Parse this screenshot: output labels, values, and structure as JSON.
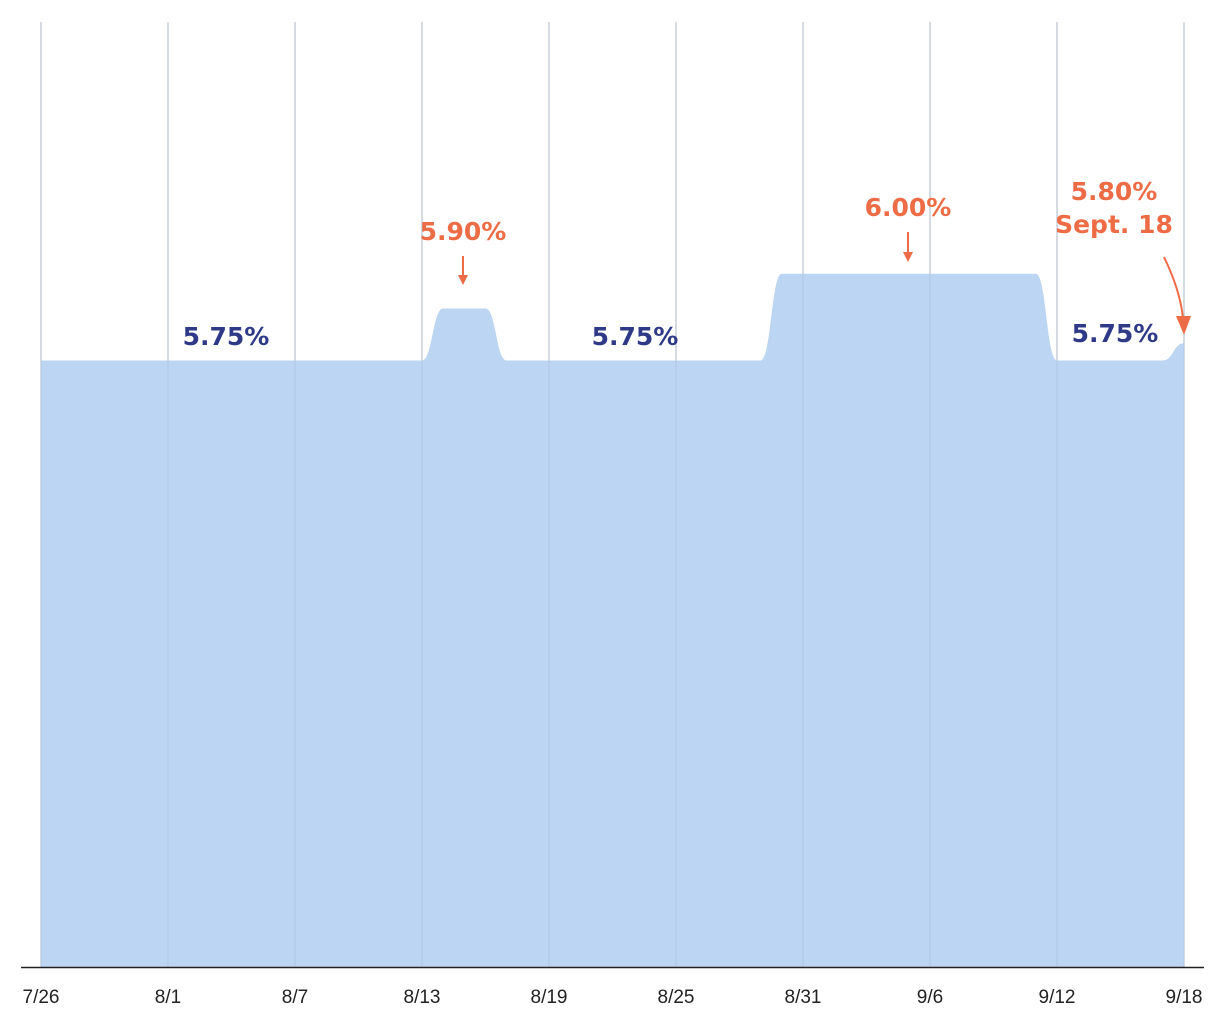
{
  "chart_data": {
    "type": "area",
    "title": "",
    "xlabel": "",
    "ylabel": "",
    "ylim": [
      4.0,
      6.79
    ],
    "grid": {
      "vertical": true,
      "horizontal": false
    },
    "x_ticks": [
      "7/26",
      "8/1",
      "8/7",
      "8/13",
      "8/19",
      "8/25",
      "8/31",
      "9/6",
      "9/12",
      "9/18"
    ],
    "series": [
      {
        "points": [
          {
            "x": "7/26",
            "y": 5.75
          },
          {
            "x": "8/13",
            "y": 5.75
          },
          {
            "x": "8/14",
            "y": 5.9
          },
          {
            "x": "8/16",
            "y": 5.9
          },
          {
            "x": "8/17",
            "y": 5.75
          },
          {
            "x": "8/29",
            "y": 5.75
          },
          {
            "x": "8/30",
            "y": 6.0
          },
          {
            "x": "9/11",
            "y": 6.0
          },
          {
            "x": "9/12",
            "y": 5.75
          },
          {
            "x": "9/17",
            "y": 5.75
          },
          {
            "x": "9/18",
            "y": 5.8
          }
        ]
      }
    ],
    "annotations": [
      {
        "lines": [
          "5.75%"
        ],
        "color": "#2e3a87"
      },
      {
        "lines": [
          "5.90%"
        ],
        "color": "#ee6c45",
        "arrow": true
      },
      {
        "lines": [
          "5.75%"
        ],
        "color": "#2e3a87"
      },
      {
        "lines": [
          "6.00%"
        ],
        "color": "#ee6c45",
        "arrow": true
      },
      {
        "lines": [
          "5.75%"
        ],
        "color": "#2e3a87"
      },
      {
        "lines": [
          "5.80%",
          "Sept. 18"
        ],
        "color": "#ee6c45",
        "arrow": true
      }
    ],
    "colors": {
      "fill": "#bcd5f2",
      "grid": "#dddddd",
      "axis": "#222222",
      "highlight": "#ee6c45",
      "label": "#2e3a87"
    }
  }
}
